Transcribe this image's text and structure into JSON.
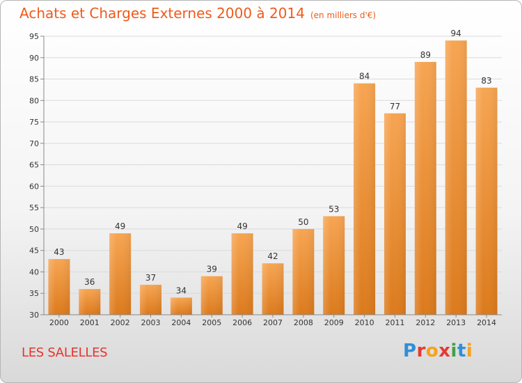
{
  "header": {
    "title": "Achats et Charges Externes 2000 à 2014",
    "subtitle": "(en milliers d'€)"
  },
  "footer": {
    "commune": "LES SALELLES",
    "logo": "Proxiti"
  },
  "colors": {
    "bar_light": "#f7a552",
    "bar_dark": "#dc7a1c",
    "title": "#ef5a1c",
    "commune": "#e7332e"
  },
  "chart_data": {
    "type": "bar",
    "title": "Achats et Charges Externes 2000 à 2014",
    "subtitle": "(en milliers d'€)",
    "xlabel": "",
    "ylabel": "",
    "categories": [
      "2000",
      "2001",
      "2002",
      "2003",
      "2004",
      "2005",
      "2006",
      "2007",
      "2008",
      "2009",
      "2010",
      "2011",
      "2012",
      "2013",
      "2014"
    ],
    "values": [
      43,
      36,
      49,
      37,
      34,
      39,
      49,
      42,
      50,
      53,
      84,
      77,
      89,
      94,
      83
    ],
    "ylim": [
      30,
      95
    ],
    "yticks": [
      30,
      35,
      40,
      45,
      50,
      55,
      60,
      65,
      70,
      75,
      80,
      85,
      90,
      95
    ],
    "grid": true,
    "legend": "none"
  }
}
